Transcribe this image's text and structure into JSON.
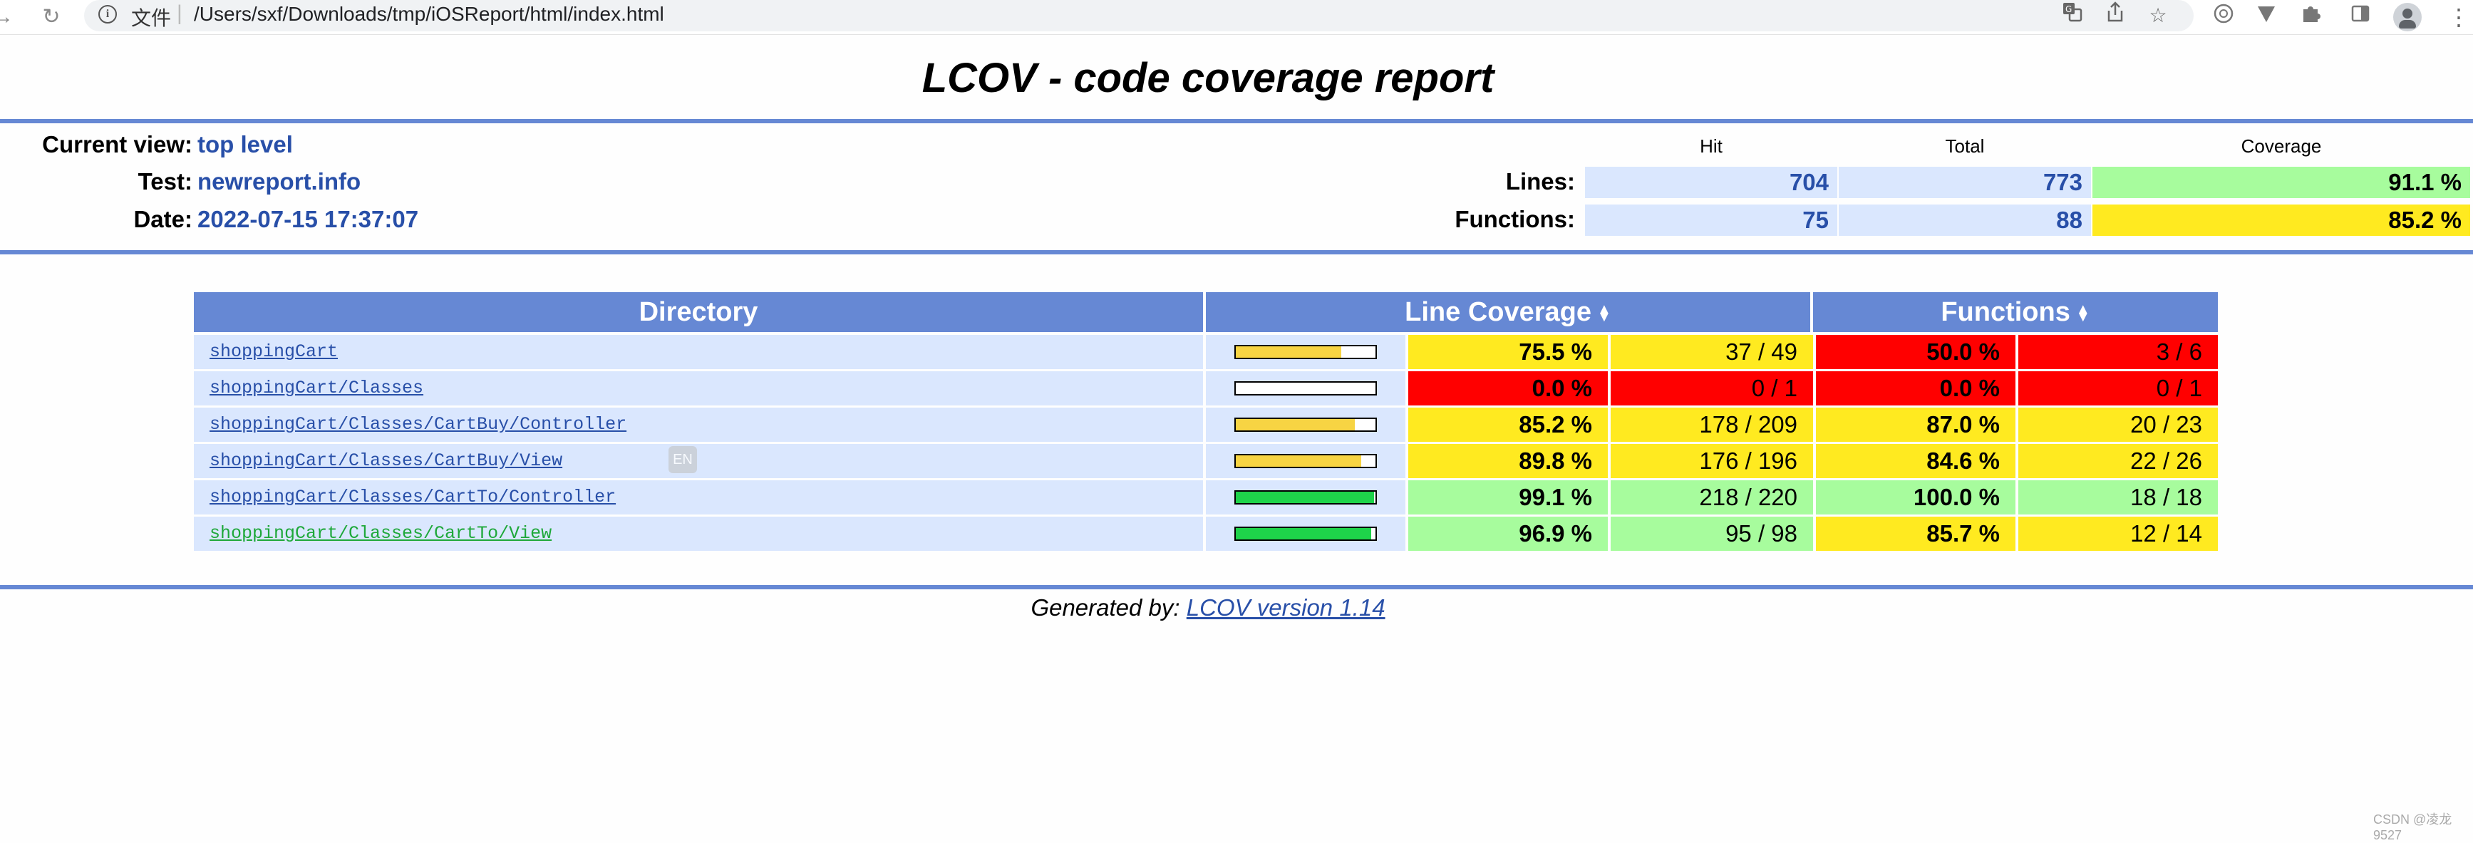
{
  "browser": {
    "back": "→",
    "reload": "↻",
    "scheme": "文件",
    "separator": "|",
    "url": "/Users/sxf/Downloads/tmp/iOSReport/html/index.html",
    "icons": [
      "translate-icon",
      "share-icon",
      "star-icon",
      "lens-icon",
      "vpn-icon",
      "puzzle-icon",
      "sidebar-icon",
      "profile-icon",
      "menu-icon"
    ]
  },
  "report": {
    "title": "LCOV - code coverage report",
    "current_view_label": "Current view:",
    "current_view": "top level",
    "test_label": "Test:",
    "test": "newreport.info",
    "date_label": "Date:",
    "date": "2022-07-15 17:37:07",
    "col_hit": "Hit",
    "col_total": "Total",
    "col_coverage": "Coverage",
    "lines_label": "Lines:",
    "lines_hit": "704",
    "lines_total": "773",
    "lines_coverage": "91.1 %",
    "functions_label": "Functions:",
    "functions_hit": "75",
    "functions_total": "88",
    "functions_coverage": "85.2 %"
  },
  "table": {
    "col_directory": "Directory",
    "col_line_coverage": "Line Coverage",
    "col_functions": "Functions",
    "sort_glyph": "▲▼",
    "rows": [
      {
        "dir": "shoppingCart",
        "bar": 75.5,
        "line_pct": "75.5 %",
        "line_ratio": "37 / 49",
        "line_level": "med",
        "fn_pct": "50.0 %",
        "fn_ratio": "3 / 6",
        "fn_level": "lo",
        "visited": false
      },
      {
        "dir": "shoppingCart/Classes",
        "bar": 0.0,
        "line_pct": "0.0 %",
        "line_ratio": "0 / 1",
        "line_level": "lo",
        "fn_pct": "0.0 %",
        "fn_ratio": "0 / 1",
        "fn_level": "lo",
        "visited": false
      },
      {
        "dir": "shoppingCart/Classes/CartBuy/Controller",
        "bar": 85.2,
        "line_pct": "85.2 %",
        "line_ratio": "178 / 209",
        "line_level": "med",
        "fn_pct": "87.0 %",
        "fn_ratio": "20 / 23",
        "fn_level": "med",
        "visited": false
      },
      {
        "dir": "shoppingCart/Classes/CartBuy/View",
        "bar": 89.8,
        "line_pct": "89.8 %",
        "line_ratio": "176 / 196",
        "line_level": "med",
        "fn_pct": "84.6 %",
        "fn_ratio": "22 / 26",
        "fn_level": "med",
        "visited": false
      },
      {
        "dir": "shoppingCart/Classes/CartTo/Controller",
        "bar": 99.1,
        "line_pct": "99.1 %",
        "line_ratio": "218 / 220",
        "line_level": "hi",
        "fn_pct": "100.0 %",
        "fn_ratio": "18 / 18",
        "fn_level": "hi",
        "visited": false
      },
      {
        "dir": "shoppingCart/Classes/CartTo/View",
        "bar": 96.9,
        "line_pct": "96.9 %",
        "line_ratio": "95 / 98",
        "line_level": "hi",
        "fn_pct": "85.7 %",
        "fn_ratio": "12 / 14",
        "fn_level": "med",
        "visited": true
      }
    ]
  },
  "overlay": {
    "en_badge": "EN"
  },
  "footer": {
    "prefix": "Generated by: ",
    "link": "LCOV version 1.14"
  },
  "watermark": "CSDN @凌龙9527",
  "colors": {
    "hi": "#a7fc9d",
    "med": "#ffea20",
    "lo": "#ff0000",
    "bar_med": "#f7d443",
    "bar_hi": "#1ed34a",
    "link": "#284fa8",
    "visited": "#1ea83a",
    "rule": "#6688d4"
  }
}
